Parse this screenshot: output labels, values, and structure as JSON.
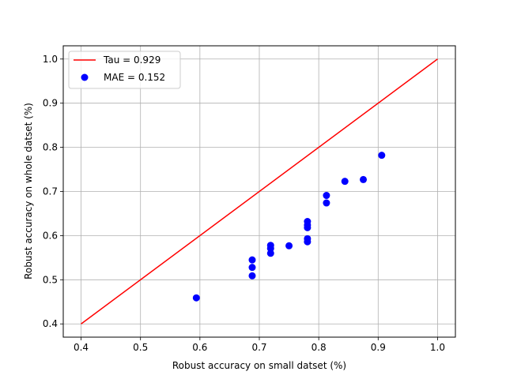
{
  "chart_data": {
    "type": "scatter",
    "xlabel": "Robust accuracy on small datset (%)",
    "ylabel": "Robust accuracy on whole datset (%)",
    "xlim": [
      0.37,
      1.03
    ],
    "ylim": [
      0.37,
      1.03
    ],
    "xticks": [
      0.4,
      0.5,
      0.6,
      0.7,
      0.8,
      0.9,
      1.0
    ],
    "yticks": [
      0.4,
      0.5,
      0.6,
      0.7,
      0.8,
      0.9,
      1.0
    ],
    "xtick_labels": [
      "0.4",
      "0.5",
      "0.6",
      "0.7",
      "0.8",
      "0.9",
      "1.0"
    ],
    "ytick_labels": [
      "0.4",
      "0.5",
      "0.6",
      "0.7",
      "0.8",
      "0.9",
      "1.0"
    ],
    "grid": true,
    "legend_position": "top-left",
    "series": [
      {
        "name": "Tau = 0.929",
        "kind": "line",
        "color": "#ff0000",
        "x": [
          0.4,
          1.0
        ],
        "y": [
          0.4,
          1.0
        ]
      },
      {
        "name": "MAE = 0.152",
        "kind": "scatter",
        "color": "#0000ff",
        "x": [
          0.594,
          0.688,
          0.688,
          0.688,
          0.719,
          0.719,
          0.719,
          0.75,
          0.781,
          0.781,
          0.781,
          0.781,
          0.781,
          0.813,
          0.813,
          0.844,
          0.875,
          0.906
        ],
        "y": [
          0.459,
          0.509,
          0.528,
          0.545,
          0.56,
          0.571,
          0.578,
          0.577,
          0.586,
          0.593,
          0.618,
          0.624,
          0.632,
          0.674,
          0.691,
          0.723,
          0.727,
          0.782
        ]
      }
    ]
  }
}
